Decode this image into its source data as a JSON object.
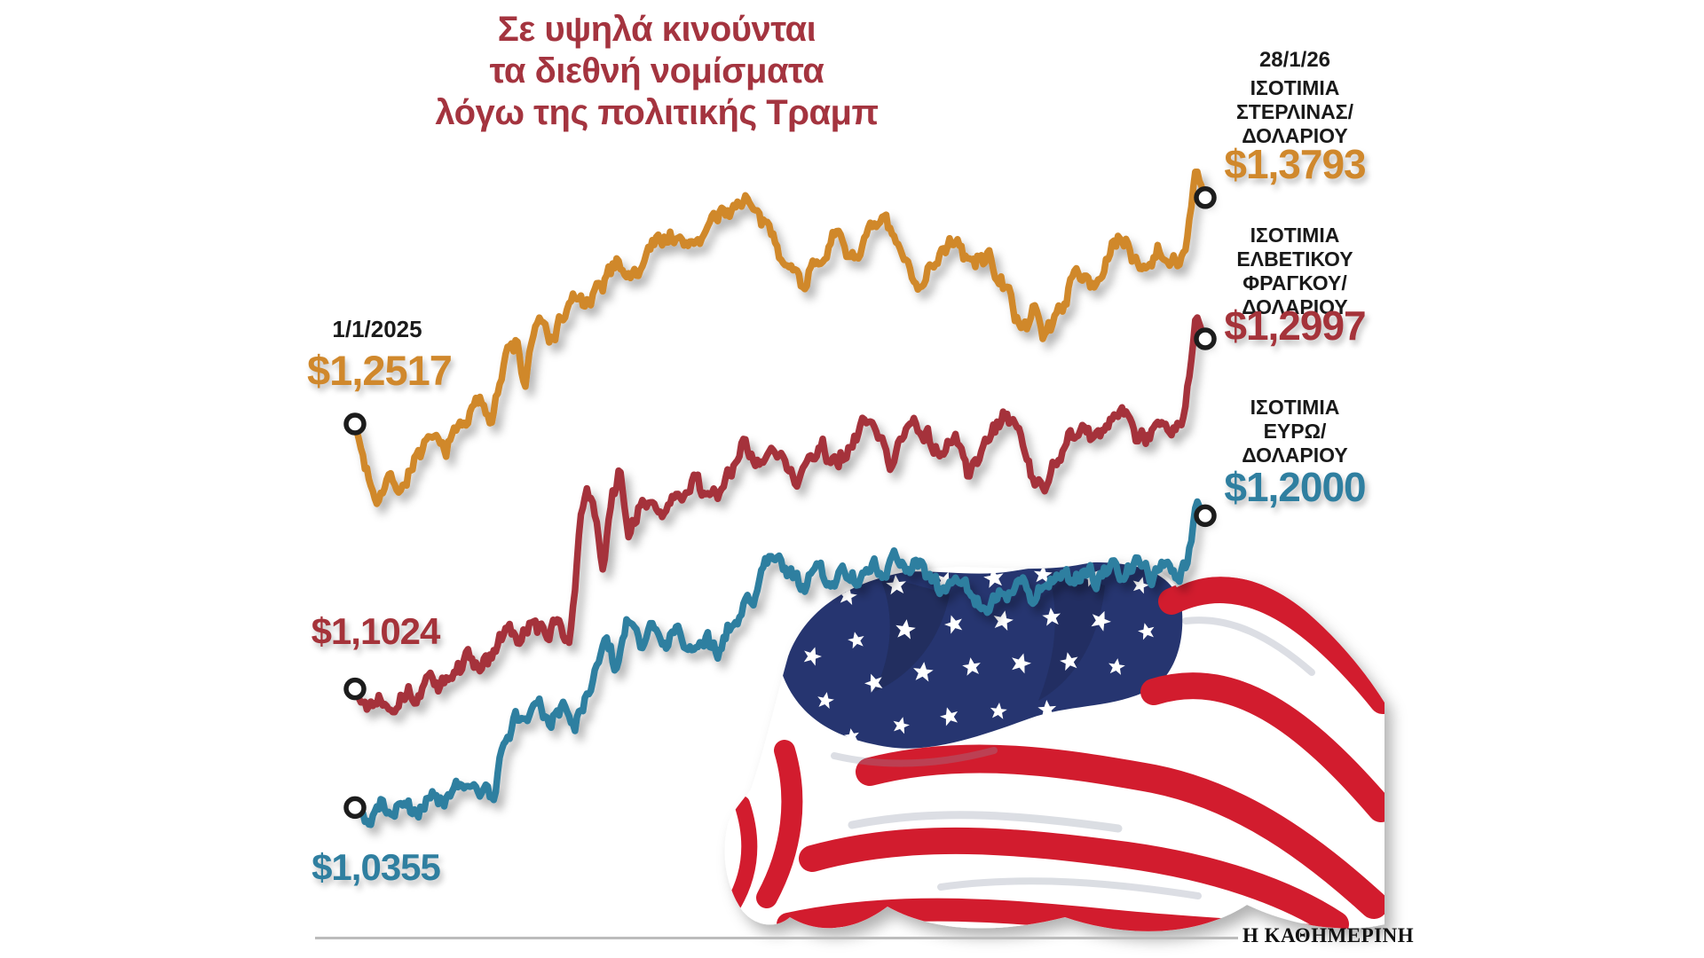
{
  "title": {
    "lines": [
      "Σε υψηλά κινούνται",
      "τα διεθνή νομίσματα",
      "λόγω της πολιτικής Τραμπ"
    ],
    "color": "#a4343f"
  },
  "annotations": {
    "start_date": "1/1/2025",
    "end_date": "28/1/26"
  },
  "footer": {
    "brand": "Η ΚΑΘΗΜΕΡΙΝΗ"
  },
  "flag": {
    "name": "us-flag",
    "canton_color": "#26356f",
    "stripe_color": "#d21f2e",
    "star_color": "#ffffff"
  },
  "chart_data": {
    "type": "line",
    "title": "Σε υψηλά κινούνται τα διεθνή νομίσματα λόγω της πολιτικής Τραμπ",
    "x_start_label": "1/1/2025",
    "x_end_label": "28/1/26",
    "ylim": [
      1.02,
      1.4
    ],
    "grid": false,
    "legend_position": "right",
    "series": [
      {
        "name": "ΙΣΟΤΙΜΙΑ ΣΤΕΡΛΙΝΑΣ/ΔΟΛΑΡΙΟΥ",
        "label_lines": [
          "ΙΣΟΤΙΜΙΑ",
          "ΣΤΕΡΛΙΝΑΣ/",
          "ΔΟΛΑΡΙΟΥ"
        ],
        "color": "#d0882c",
        "start_value": 1.2517,
        "end_value": 1.3793,
        "start_label": "$1,2517",
        "end_label": "$1,3793",
        "anchors": [
          [
            0,
            1.2517
          ],
          [
            0.012,
            1.228
          ],
          [
            0.025,
            1.2125
          ],
          [
            0.04,
            1.222
          ],
          [
            0.055,
            1.2165
          ],
          [
            0.07,
            1.233
          ],
          [
            0.09,
            1.2405
          ],
          [
            0.105,
            1.2365
          ],
          [
            0.12,
            1.247
          ],
          [
            0.135,
            1.2585
          ],
          [
            0.15,
            1.2635
          ],
          [
            0.16,
            1.2575
          ],
          [
            0.168,
            1.272
          ],
          [
            0.178,
            1.289
          ],
          [
            0.19,
            1.297
          ],
          [
            0.2,
            1.2715
          ],
          [
            0.206,
            1.298
          ],
          [
            0.215,
            1.308
          ],
          [
            0.23,
            1.2985
          ],
          [
            0.245,
            1.3125
          ],
          [
            0.26,
            1.3225
          ],
          [
            0.275,
            1.3165
          ],
          [
            0.29,
            1.3295
          ],
          [
            0.31,
            1.3445
          ],
          [
            0.33,
            1.334
          ],
          [
            0.35,
            1.3525
          ],
          [
            0.37,
            1.3605
          ],
          [
            0.385,
            1.3495
          ],
          [
            0.4,
            1.356
          ],
          [
            0.42,
            1.3645
          ],
          [
            0.44,
            1.372
          ],
          [
            0.458,
            1.3815
          ],
          [
            0.472,
            1.3665
          ],
          [
            0.49,
            1.3575
          ],
          [
            0.505,
            1.3465
          ],
          [
            0.525,
            1.3305
          ],
          [
            0.545,
            1.3455
          ],
          [
            0.565,
            1.3565
          ],
          [
            0.585,
            1.3465
          ],
          [
            0.605,
            1.3585
          ],
          [
            0.625,
            1.3645
          ],
          [
            0.645,
            1.341
          ],
          [
            0.665,
            1.3325
          ],
          [
            0.685,
            1.3475
          ],
          [
            0.7,
            1.3555
          ],
          [
            0.715,
            1.3455
          ],
          [
            0.73,
            1.3405
          ],
          [
            0.745,
            1.3475
          ],
          [
            0.76,
            1.3335
          ],
          [
            0.775,
            1.3155
          ],
          [
            0.79,
            1.3045
          ],
          [
            0.8,
            1.3145
          ],
          [
            0.81,
            1.3035
          ],
          [
            0.825,
            1.3125
          ],
          [
            0.84,
            1.3285
          ],
          [
            0.855,
            1.3385
          ],
          [
            0.87,
            1.3305
          ],
          [
            0.885,
            1.3445
          ],
          [
            0.9,
            1.3565
          ],
          [
            0.915,
            1.3465
          ],
          [
            0.93,
            1.3415
          ],
          [
            0.945,
            1.3525
          ],
          [
            0.96,
            1.3445
          ],
          [
            0.975,
            1.3485
          ],
          [
            0.988,
            1.392
          ],
          [
            1,
            1.3793
          ]
        ]
      },
      {
        "name": "ΙΣΟΤΙΜΙΑ ΕΛΒΕΤΙΚΟΥ ΦΡΑΓΚΟΥ/ΔΟΛΑΡΙΟΥ",
        "label_lines": [
          "ΙΣΟΤΙΜΙΑ",
          "ΕΛΒΕΤΙΚΟΥ",
          "ΦΡΑΓΚΟΥ/",
          "ΔΟΛΑΡΙΟΥ"
        ],
        "color": "#a5333a",
        "start_value": 1.1024,
        "end_value": 1.2997,
        "start_label": "$1,1024",
        "end_label": "$1,2997",
        "anchors": [
          [
            0,
            1.1024
          ],
          [
            0.015,
            1.0935
          ],
          [
            0.03,
            1.1005
          ],
          [
            0.045,
            1.0945
          ],
          [
            0.06,
            1.1035
          ],
          [
            0.075,
            1.0985
          ],
          [
            0.09,
            1.1095
          ],
          [
            0.105,
            1.1035
          ],
          [
            0.12,
            1.1125
          ],
          [
            0.135,
            1.1195
          ],
          [
            0.15,
            1.1135
          ],
          [
            0.165,
            1.1265
          ],
          [
            0.18,
            1.1335
          ],
          [
            0.195,
            1.1275
          ],
          [
            0.21,
            1.1385
          ],
          [
            0.225,
            1.1315
          ],
          [
            0.24,
            1.1385
          ],
          [
            0.252,
            1.1335
          ],
          [
            0.262,
            1.1785
          ],
          [
            0.272,
            1.2215
          ],
          [
            0.282,
            1.1985
          ],
          [
            0.292,
            1.1625
          ],
          [
            0.302,
            1.2105
          ],
          [
            0.312,
            1.2245
          ],
          [
            0.322,
            1.1905
          ],
          [
            0.335,
            1.2035
          ],
          [
            0.35,
            1.2125
          ],
          [
            0.365,
            1.1985
          ],
          [
            0.38,
            1.2105
          ],
          [
            0.4,
            1.2185
          ],
          [
            0.42,
            1.2105
          ],
          [
            0.44,
            1.2225
          ],
          [
            0.458,
            1.2385
          ],
          [
            0.475,
            1.2285
          ],
          [
            0.49,
            1.2445
          ],
          [
            0.505,
            1.2305
          ],
          [
            0.52,
            1.2185
          ],
          [
            0.535,
            1.2285
          ],
          [
            0.55,
            1.2385
          ],
          [
            0.565,
            1.2285
          ],
          [
            0.58,
            1.2385
          ],
          [
            0.6,
            1.2525
          ],
          [
            0.615,
            1.2425
          ],
          [
            0.63,
            1.2285
          ],
          [
            0.645,
            1.2485
          ],
          [
            0.66,
            1.2545
          ],
          [
            0.675,
            1.2445
          ],
          [
            0.69,
            1.2345
          ],
          [
            0.705,
            1.2445
          ],
          [
            0.72,
            1.2225
          ],
          [
            0.735,
            1.2325
          ],
          [
            0.75,
            1.2445
          ],
          [
            0.765,
            1.2545
          ],
          [
            0.78,
            1.2445
          ],
          [
            0.795,
            1.2225
          ],
          [
            0.81,
            1.2125
          ],
          [
            0.825,
            1.2325
          ],
          [
            0.84,
            1.2445
          ],
          [
            0.855,
            1.2525
          ],
          [
            0.87,
            1.2425
          ],
          [
            0.885,
            1.2485
          ],
          [
            0.9,
            1.2585
          ],
          [
            0.915,
            1.2485
          ],
          [
            0.93,
            1.2385
          ],
          [
            0.945,
            1.2485
          ],
          [
            0.96,
            1.2445
          ],
          [
            0.975,
            1.2525
          ],
          [
            0.988,
            1.3125
          ],
          [
            1,
            1.2997
          ]
        ]
      },
      {
        "name": "ΙΣΟΤΙΜΙΑ ΕΥΡΩ/ΔΟΛΑΡΙΟΥ",
        "label_lines": [
          "ΙΣΟΤΙΜΙΑ",
          "ΕΥΡΩ/",
          "ΔΟΛΑΡΙΟΥ"
        ],
        "color": "#2f7fa0",
        "start_value": 1.0355,
        "end_value": 1.2,
        "start_label": "$1,0355",
        "end_label": "$1,2000",
        "anchors": [
          [
            0,
            1.0355
          ],
          [
            0.015,
            1.0285
          ],
          [
            0.03,
            1.0395
          ],
          [
            0.045,
            1.0305
          ],
          [
            0.06,
            1.0415
          ],
          [
            0.075,
            1.0345
          ],
          [
            0.09,
            1.0455
          ],
          [
            0.105,
            1.0385
          ],
          [
            0.12,
            1.0465
          ],
          [
            0.135,
            1.0415
          ],
          [
            0.15,
            1.0445
          ],
          [
            0.163,
            1.0405
          ],
          [
            0.175,
            1.0705
          ],
          [
            0.188,
            1.0855
          ],
          [
            0.2,
            1.0805
          ],
          [
            0.215,
            1.0925
          ],
          [
            0.23,
            1.0845
          ],
          [
            0.245,
            1.0925
          ],
          [
            0.258,
            1.0815
          ],
          [
            0.27,
            1.0935
          ],
          [
            0.283,
            1.1185
          ],
          [
            0.295,
            1.1345
          ],
          [
            0.307,
            1.1125
          ],
          [
            0.32,
            1.1365
          ],
          [
            0.335,
            1.1285
          ],
          [
            0.35,
            1.1405
          ],
          [
            0.365,
            1.1305
          ],
          [
            0.38,
            1.1385
          ],
          [
            0.395,
            1.1245
          ],
          [
            0.41,
            1.1325
          ],
          [
            0.425,
            1.1245
          ],
          [
            0.44,
            1.1365
          ],
          [
            0.455,
            1.1445
          ],
          [
            0.47,
            1.1565
          ],
          [
            0.485,
            1.1725
          ],
          [
            0.5,
            1.1785
          ],
          [
            0.515,
            1.1665
          ],
          [
            0.53,
            1.1585
          ],
          [
            0.545,
            1.1685
          ],
          [
            0.56,
            1.1625
          ],
          [
            0.575,
            1.1705
          ],
          [
            0.59,
            1.1645
          ],
          [
            0.605,
            1.1745
          ],
          [
            0.62,
            1.1665
          ],
          [
            0.635,
            1.1765
          ],
          [
            0.65,
            1.1685
          ],
          [
            0.665,
            1.1725
          ],
          [
            0.68,
            1.1625
          ],
          [
            0.695,
            1.1545
          ],
          [
            0.71,
            1.1625
          ],
          [
            0.725,
            1.1565
          ],
          [
            0.74,
            1.1485
          ],
          [
            0.755,
            1.1585
          ],
          [
            0.77,
            1.1525
          ],
          [
            0.785,
            1.1605
          ],
          [
            0.8,
            1.1525
          ],
          [
            0.815,
            1.1625
          ],
          [
            0.83,
            1.1685
          ],
          [
            0.845,
            1.1605
          ],
          [
            0.86,
            1.1685
          ],
          [
            0.875,
            1.1625
          ],
          [
            0.89,
            1.1705
          ],
          [
            0.905,
            1.1645
          ],
          [
            0.92,
            1.1725
          ],
          [
            0.935,
            1.1665
          ],
          [
            0.95,
            1.1705
          ],
          [
            0.965,
            1.1645
          ],
          [
            0.978,
            1.1705
          ],
          [
            0.99,
            1.2045
          ],
          [
            1,
            1.2
          ]
        ]
      }
    ]
  }
}
